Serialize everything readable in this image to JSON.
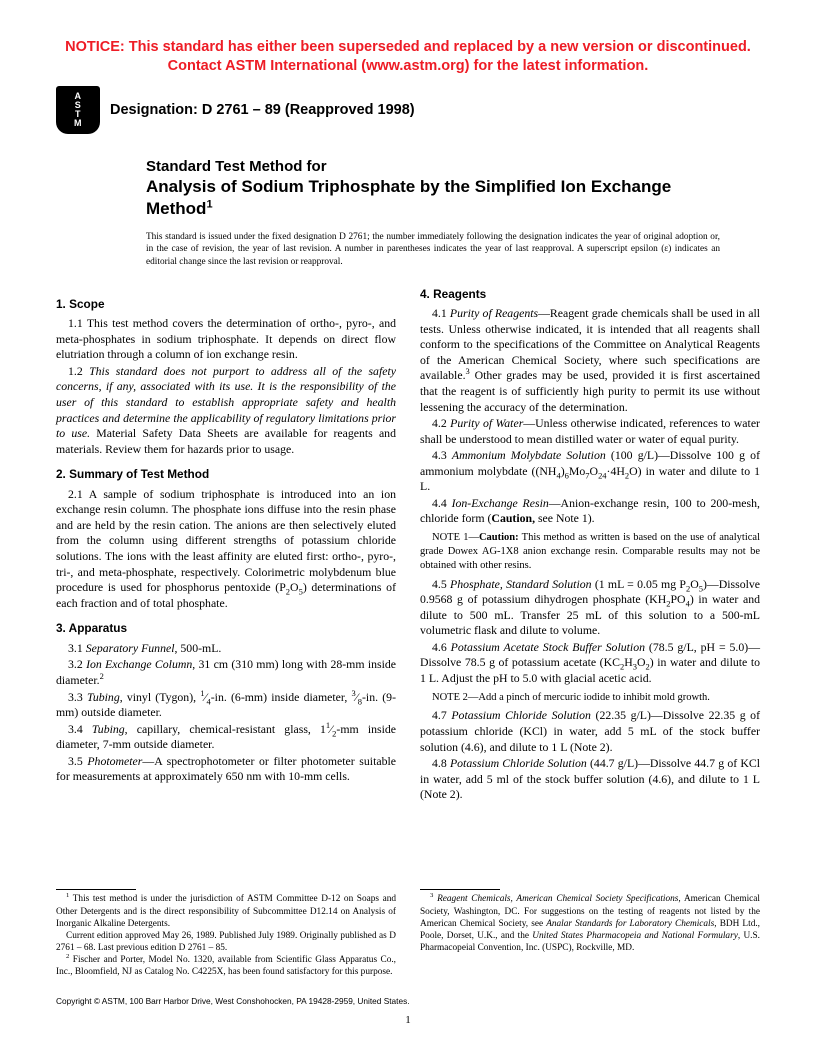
{
  "notice": {
    "color": "#ee1c25",
    "line1": "NOTICE: This standard has either been superseded and replaced by a new version or discontinued.",
    "line2": "Contact ASTM International (www.astm.org) for the latest information."
  },
  "logo": {
    "l1": "A",
    "l2": "S",
    "l3": "T",
    "l4": "M"
  },
  "designation": "Designation: D 2761 – 89 (Reapproved 1998)",
  "title": {
    "lead": "Standard Test Method for",
    "main": "Analysis of Sodium Triphosphate by the Simplified Ion Exchange Method",
    "super": "1"
  },
  "issuance": "This standard is issued under the fixed designation D 2761; the number immediately following the designation indicates the year of original adoption or, in the case of revision, the year of last revision. A number in parentheses indicates the year of last reapproval. A superscript epsilon (ε) indicates an editorial change since the last revision or reapproval.",
  "footnotes": {
    "f1a": " This test method is under the jurisdiction of ASTM Committee D-12 on Soaps and Other Detergents and is the direct responsibility of Subcommittee D12.14 on Analysis of Inorganic Alkaline Detergents.",
    "f1b": "Current edition approved May 26, 1989. Published July 1989. Originally published as D 2761 – 68. Last previous edition D 2761 – 85.",
    "f2": " Fischer and Porter, Model No. 1320, available from Scientific Glass Apparatus Co., Inc., Bloomfield, NJ as Catalog No. C4225X, has been found satisfactory for this purpose.",
    "f3a": "Reagent Chemicals, American Chemical Society Specifications",
    "f3b": ", American Chemical Society, Washington, DC. For suggestions on the testing of reagents not listed by the American Chemical Society, see ",
    "f3c": "Analar Standards for Laboratory Chemicals",
    "f3d": ", BDH Ltd., Poole, Dorset, U.K., and the ",
    "f3e": "United States Pharmacopeia and National Formulary",
    "f3f": ", U.S. Pharmacopeial Convention, Inc. (USPC), Rockville, MD."
  },
  "copyright": "Copyright © ASTM, 100 Barr Harbor Drive, West Conshohocken, PA 19428-2959, United States.",
  "pagenum": "1"
}
